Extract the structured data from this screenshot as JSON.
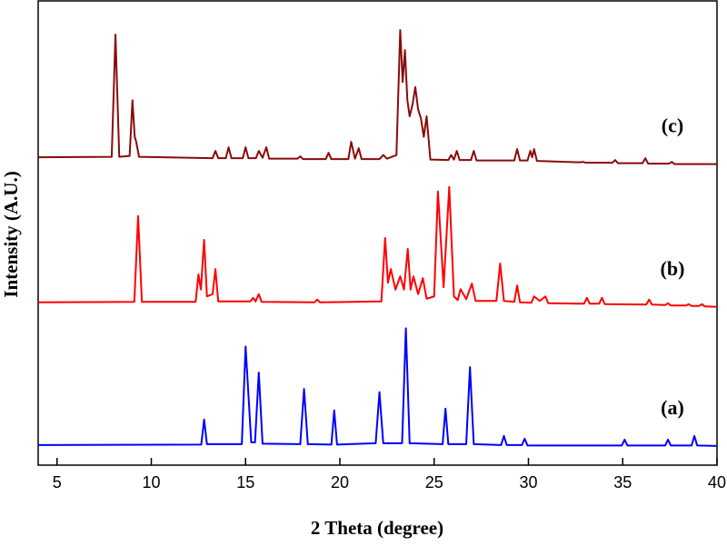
{
  "chart_data": {
    "type": "line",
    "xlabel": "2 Theta (degree)",
    "ylabel": "Intensity (A.U.)",
    "xlim": [
      4,
      40
    ],
    "xticks": [
      5,
      10,
      15,
      20,
      25,
      30,
      35,
      40
    ],
    "ylim": [
      0,
      100
    ],
    "series": [
      {
        "name": "(a)",
        "color": "#0000ff",
        "x": [
          4,
          12.65,
          12.8,
          12.95,
          14.8,
          15.0,
          15.3,
          15.5,
          15.7,
          15.9,
          17.9,
          18.1,
          18.3,
          19.55,
          19.7,
          19.85,
          21.9,
          22.1,
          22.3,
          23.3,
          23.5,
          23.7,
          25.45,
          25.6,
          25.75,
          26.7,
          26.9,
          27.1,
          28.55,
          28.7,
          28.85,
          29.65,
          29.8,
          29.95,
          34.95,
          35.1,
          35.25,
          37.25,
          37.4,
          37.55,
          38.65,
          38.8,
          38.95,
          40
        ],
        "values": [
          4.4,
          4.5,
          10,
          4.6,
          4.6,
          26,
          5,
          5,
          20.3,
          4.7,
          4.6,
          16.7,
          4.6,
          4.5,
          12,
          4.5,
          4.8,
          16,
          4.8,
          4.8,
          30,
          4.8,
          4.6,
          12.4,
          4.6,
          4.6,
          21.5,
          4.6,
          4.4,
          6.4,
          4.4,
          4.4,
          5.8,
          4.3,
          4.3,
          5.6,
          4.3,
          4.3,
          5.6,
          4.3,
          4.3,
          6.4,
          4.3,
          4.2
        ]
      },
      {
        "name": "(b)",
        "color": "#ff0000",
        "x": [
          4,
          9.1,
          9.3,
          9.5,
          12.35,
          12.5,
          12.63,
          12.8,
          12.95,
          13.25,
          13.4,
          13.55,
          15.25,
          15.4,
          15.53,
          15.7,
          15.85,
          18.65,
          18.8,
          18.95,
          22.2,
          22.4,
          22.55,
          22.7,
          22.95,
          23.2,
          23.4,
          23.6,
          23.75,
          23.9,
          24.15,
          24.4,
          24.6,
          25.0,
          25.2,
          25.5,
          25.8,
          26.05,
          26.25,
          26.4,
          26.7,
          27.0,
          27.2,
          28.3,
          28.5,
          28.7,
          29.25,
          29.4,
          29.55,
          30.15,
          30.3,
          30.6,
          30.9,
          31.05,
          32.95,
          33.1,
          33.25,
          33.75,
          33.9,
          34.05,
          36.25,
          36.4,
          36.55,
          37.25,
          37.4,
          37.55,
          38.35,
          38.5,
          38.65,
          39.05,
          39.2,
          39.35,
          40
        ],
        "values": [
          35.7,
          35.8,
          54.6,
          35.8,
          35.8,
          41.8,
          38.5,
          49.4,
          37,
          37.5,
          43,
          35.9,
          35.9,
          36.7,
          35.9,
          37.5,
          35.8,
          35.7,
          36.3,
          35.7,
          35.9,
          49.8,
          40,
          43,
          38.5,
          41.4,
          38.5,
          47.4,
          38.5,
          41.4,
          37.5,
          41,
          36.5,
          37,
          60,
          39,
          61,
          37,
          36.2,
          38.6,
          36.4,
          39.8,
          36,
          36,
          44.2,
          36,
          35.8,
          39.4,
          35.7,
          35.6,
          37,
          36,
          37,
          35.5,
          35.4,
          36.7,
          35.4,
          35.4,
          36.7,
          35.3,
          35.2,
          36.3,
          35.2,
          35.1,
          35.5,
          35,
          35,
          35.3,
          34.9,
          34.9,
          35.3,
          34.8,
          34.7
        ]
      },
      {
        "name": "(c)",
        "color": "#8b0a0a",
        "x": [
          4,
          7.9,
          8.1,
          8.3,
          8.85,
          9.0,
          9.12,
          9.2,
          9.35,
          13.25,
          13.4,
          13.55,
          13.95,
          14.1,
          14.25,
          14.85,
          15.0,
          15.15,
          15.55,
          15.7,
          15.9,
          16.1,
          16.25,
          17.75,
          17.9,
          18.05,
          19.25,
          19.4,
          19.55,
          20.45,
          20.6,
          20.8,
          21.0,
          21.15,
          22.1,
          22.3,
          22.5,
          23.0,
          23.2,
          23.33,
          23.45,
          23.58,
          23.7,
          23.85,
          24.0,
          24.15,
          24.3,
          24.45,
          24.6,
          24.8,
          25.75,
          25.9,
          26.05,
          26.2,
          26.35,
          26.95,
          27.1,
          27.25,
          29.25,
          29.4,
          29.55,
          29.95,
          30.1,
          30.2,
          30.3,
          30.45,
          32.75,
          32.9,
          33.05,
          34.45,
          34.6,
          34.75,
          36.05,
          36.2,
          36.35,
          37.45,
          37.6,
          37.75,
          40
        ],
        "values": [
          67.5,
          67.6,
          94.4,
          67.6,
          67.8,
          80,
          72,
          70.9,
          67.6,
          67.3,
          68.9,
          67.3,
          67.3,
          69.7,
          67.3,
          67.3,
          69.7,
          67.3,
          67.3,
          68.9,
          67.4,
          69.7,
          67.2,
          67.2,
          67.7,
          67.1,
          67.1,
          68.5,
          67.1,
          67.1,
          70.9,
          67.2,
          69.5,
          67.1,
          67.1,
          68,
          67.2,
          68,
          95.4,
          84,
          91,
          80,
          76.5,
          79,
          82.9,
          78,
          76,
          72,
          76.5,
          67,
          66.9,
          68,
          67,
          68.9,
          66.9,
          66.9,
          68.9,
          66.8,
          66.8,
          69.3,
          66.8,
          66.8,
          68.9,
          67.5,
          69.3,
          66.7,
          66.4,
          66.5,
          66.3,
          66.3,
          66.9,
          66.2,
          66.2,
          67.3,
          66.1,
          66.1,
          66.5,
          66,
          66
        ]
      }
    ]
  }
}
